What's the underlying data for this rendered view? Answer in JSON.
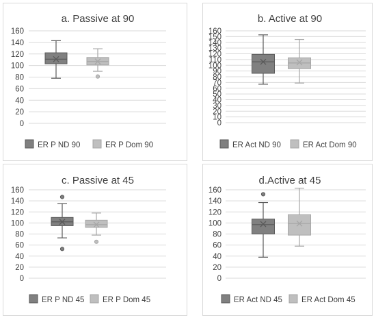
{
  "colors": {
    "series1": "#808080",
    "series2": "#bfbfbf",
    "whisker1": "#595959",
    "whisker2": "#a6a6a6",
    "grid": "#d9d9d9",
    "text": "#404040"
  },
  "chart_data": [
    {
      "type": "box",
      "title": "a. Passive at 90",
      "ylim": [
        0,
        160
      ],
      "yticks": [
        "0",
        "20",
        "40",
        "60",
        "80",
        "100",
        "120",
        "140",
        "160"
      ],
      "grid": true,
      "legend_position": "bottom",
      "series": [
        {
          "name": "ER  P ND 90",
          "min": 78,
          "q1": 103,
          "median": 111,
          "q3": 122,
          "max": 143,
          "mean": 111,
          "outliers": []
        },
        {
          "name": "ER  P Dom 90",
          "min": 90,
          "q1": 101,
          "median": 107,
          "q3": 114,
          "max": 129,
          "mean": 107,
          "outliers": [
            81
          ]
        }
      ]
    },
    {
      "type": "box",
      "title": "b. Active at 90",
      "ylim": [
        0,
        160
      ],
      "yticks": [
        "0",
        "10",
        "20",
        "30",
        "40",
        "50",
        "60",
        "70",
        "80",
        "90",
        "100",
        "110",
        "120",
        "130",
        "140",
        "150",
        "160"
      ],
      "grid": true,
      "legend_position": "bottom",
      "series": [
        {
          "name": "ER Act  ND 90",
          "min": 67,
          "q1": 86,
          "median": 106,
          "q3": 119,
          "max": 153,
          "mean": 106,
          "outliers": []
        },
        {
          "name": "ER Act Dom 90",
          "min": 69,
          "q1": 94,
          "median": 104,
          "q3": 113,
          "max": 145,
          "mean": 105,
          "outliers": []
        }
      ]
    },
    {
      "type": "box",
      "title": "c. Passive at 45",
      "ylim": [
        0,
        160
      ],
      "yticks": [
        "0",
        "20",
        "40",
        "60",
        "80",
        "100",
        "120",
        "140",
        "160"
      ],
      "grid": true,
      "legend_position": "bottom",
      "series": [
        {
          "name": "ER P ND 45",
          "min": 73,
          "q1": 95,
          "median": 102,
          "q3": 110,
          "max": 135,
          "mean": 102,
          "outliers": [
            147,
            53
          ]
        },
        {
          "name": "ER P Dom 45",
          "min": 78,
          "q1": 92,
          "median": 97,
          "q3": 105,
          "max": 118,
          "mean": 97,
          "outliers": [
            66
          ]
        }
      ]
    },
    {
      "type": "box",
      "title": "d.Active at 45",
      "ylim": [
        0,
        160
      ],
      "yticks": [
        "0",
        "20",
        "40",
        "60",
        "80",
        "100",
        "120",
        "140",
        "160"
      ],
      "grid": true,
      "legend_position": "bottom",
      "series": [
        {
          "name": "ER Act ND 45",
          "min": 38,
          "q1": 80,
          "median": 97,
          "q3": 107,
          "max": 137,
          "mean": 98,
          "outliers": [
            152
          ]
        },
        {
          "name": "ER Act Dom 45",
          "min": 58,
          "q1": 78,
          "median": 99,
          "q3": 115,
          "max": 163,
          "mean": 99,
          "outliers": []
        }
      ]
    }
  ]
}
